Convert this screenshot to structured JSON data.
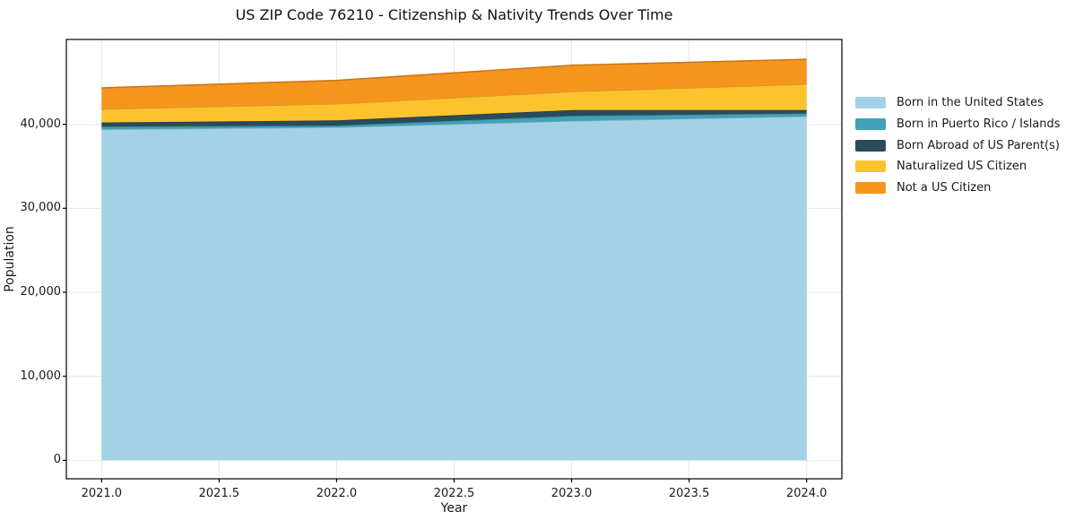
{
  "chart": {
    "title": "US ZIP Code 76210 - Citizenship & Nativity Trends Over Time",
    "xlabel": "Year",
    "ylabel": "Population"
  },
  "chart_data": {
    "type": "area",
    "stacked": true,
    "title": "US ZIP Code 76210 - Citizenship & Nativity Trends Over Time",
    "xlabel": "Year",
    "ylabel": "Population",
    "x": [
      2021,
      2022,
      2023,
      2024
    ],
    "series": [
      {
        "name": "Born in the United States",
        "color": "#A3D2E7",
        "values": [
          39400,
          39650,
          40400,
          40950
        ]
      },
      {
        "name": "Born in Puerto Rico / Islands",
        "color": "#3FA2B9",
        "values": [
          330,
          210,
          610,
          350
        ]
      },
      {
        "name": "Born Abroad of US Parent(s)",
        "color": "#2B4A5A",
        "values": [
          480,
          610,
          680,
          400
        ]
      },
      {
        "name": "Naturalized US Citizen",
        "color": "#FDC32F",
        "values": [
          1600,
          1970,
          2200,
          3080
        ]
      },
      {
        "name": "Not a US Citizen",
        "color": "#F7941E",
        "values": [
          2530,
          2790,
          3140,
          2960
        ]
      }
    ],
    "stack_totals": [
      44340,
      45230,
      47030,
      47740
    ],
    "xlim": [
      2020.85,
      2024.15
    ],
    "ylim": [
      -2200,
      50100
    ],
    "x_ticks": [
      2021.0,
      2021.5,
      2022.0,
      2022.5,
      2023.0,
      2023.5,
      2024.0
    ],
    "x_tick_labels": [
      "2021.0",
      "2021.5",
      "2022.0",
      "2022.5",
      "2023.0",
      "2023.5",
      "2024.0"
    ],
    "y_ticks": [
      0,
      10000,
      20000,
      30000,
      40000
    ],
    "y_tick_labels": [
      "0",
      "10,000",
      "20,000",
      "30,000",
      "40,000"
    ],
    "grid": true,
    "grid_color": "#e7e7e7",
    "spine_color": "#000000",
    "legend_position": "right-outside"
  }
}
